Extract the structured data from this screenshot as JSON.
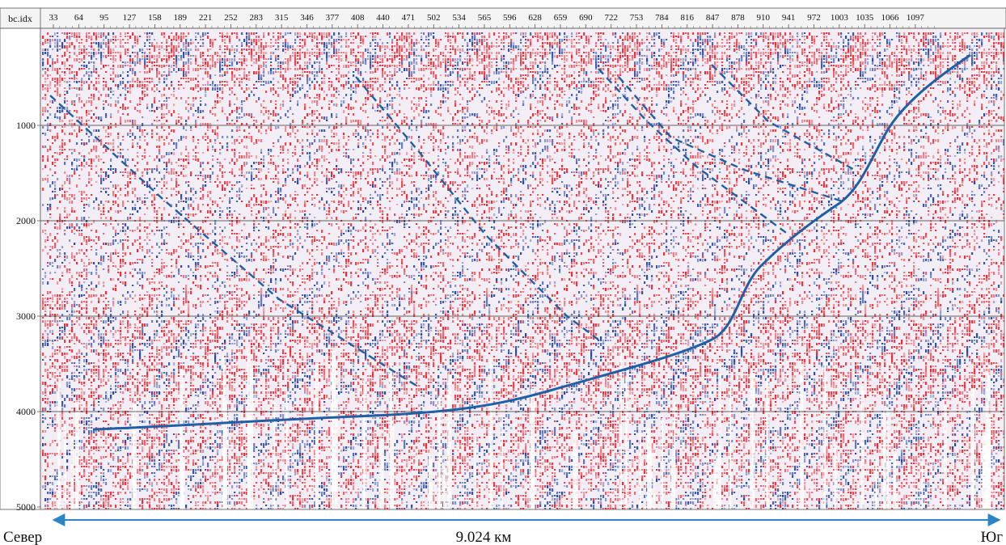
{
  "header": {
    "corner_label": "bc.idx",
    "ticks": [
      "33",
      "64",
      "95",
      "127",
      "158",
      "189",
      "221",
      "252",
      "283",
      "315",
      "346",
      "377",
      "408",
      "440",
      "471",
      "502",
      "534",
      "565",
      "596",
      "628",
      "659",
      "690",
      "722",
      "753",
      "784",
      "816",
      "847",
      "878",
      "910",
      "941",
      "972",
      "1003",
      "1035",
      "1066",
      "1097"
    ]
  },
  "depth_axis": {
    "ticks": [
      "1000",
      "2000",
      "3000",
      "4000",
      "5000"
    ]
  },
  "footer": {
    "left_label": "Север",
    "center_label": "9.024 км",
    "right_label": "Юг"
  },
  "colors": {
    "positive": "#e8202a",
    "negative": "#1c3f9e",
    "interpretation": "#1f5fa6",
    "arrow": "#2a86c8",
    "gridline": "#333333"
  }
}
